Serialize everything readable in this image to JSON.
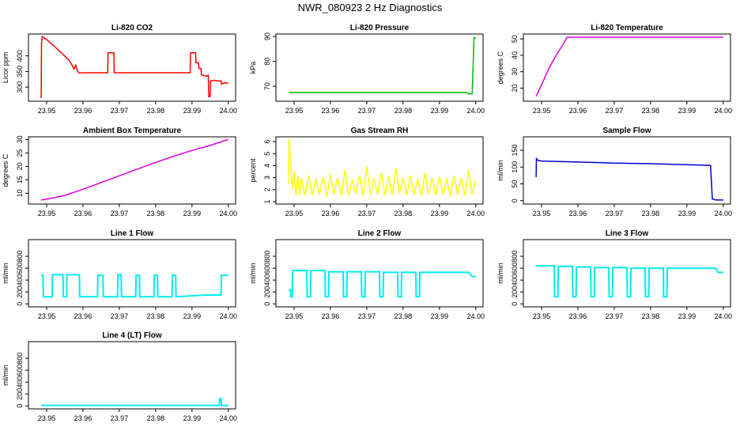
{
  "page_title": "NWR_080923 2 Hz Diagnostics",
  "chart_data": [
    {
      "id": "co2",
      "type": "line",
      "title": "Li-820 CO2",
      "ylabel": "Licor ppm",
      "color": "#ff0000",
      "xlim": [
        23.945,
        24.002
      ],
      "ylim": [
        255,
        470
      ],
      "xticks": [
        "23.95",
        "23.96",
        "23.97",
        "23.98",
        "23.99",
        "24.00"
      ],
      "yticks": [
        "300",
        "350",
        "400"
      ],
      "x": [
        23.9485,
        23.9486,
        23.9488,
        23.95,
        23.952,
        23.954,
        23.956,
        23.957,
        23.9575,
        23.958,
        23.9585,
        23.959,
        23.96,
        23.962,
        23.964,
        23.966,
        23.9668,
        23.9669,
        23.9685,
        23.9686,
        23.97,
        23.975,
        23.98,
        23.985,
        23.9895,
        23.9896,
        23.991,
        23.9911,
        23.9918,
        23.9919,
        23.9925,
        23.9926,
        23.993,
        23.994,
        23.9945,
        23.9946,
        23.995,
        23.9951,
        23.996,
        23.997,
        23.998,
        23.9981,
        23.999,
        24.0
      ],
      "y": [
        265,
        440,
        462,
        452,
        432,
        410,
        388,
        370,
        358,
        370,
        350,
        345,
        346,
        346,
        346,
        346,
        346,
        410,
        410,
        346,
        346,
        346,
        346,
        346,
        346,
        410,
        410,
        378,
        378,
        360,
        360,
        340,
        338,
        335,
        338,
        270,
        270,
        320,
        322,
        320,
        320,
        310,
        314,
        312
      ]
    },
    {
      "id": "pressure",
      "type": "line",
      "title": "Li-820 Pressure",
      "ylabel": "kPa",
      "color": "#00bb00",
      "xlim": [
        23.945,
        24.002
      ],
      "ylim": [
        64,
        91
      ],
      "xticks": [
        "23.95",
        "23.96",
        "23.97",
        "23.98",
        "23.99",
        "24.00"
      ],
      "yticks": [
        "70",
        "80",
        "90"
      ],
      "x": [
        23.9485,
        23.96,
        23.97,
        23.98,
        23.99,
        23.9975,
        23.998,
        23.999,
        23.9993,
        23.9995,
        24.0
      ],
      "y": [
        67.5,
        67.5,
        67.5,
        67.5,
        67.5,
        67.5,
        67.0,
        67.0,
        80.0,
        89.5,
        89.5
      ]
    },
    {
      "id": "temperature",
      "type": "line",
      "title": "Li-820 Temperature",
      "ylabel": "degrees C",
      "color": "#dd00dd",
      "xlim": [
        23.945,
        24.002
      ],
      "ylim": [
        12,
        53
      ],
      "xticks": [
        "23.95",
        "23.96",
        "23.97",
        "23.98",
        "23.99",
        "24.00"
      ],
      "yticks": [
        "20",
        "30",
        "40",
        "50"
      ],
      "x": [
        23.9485,
        23.95,
        23.952,
        23.954,
        23.956,
        23.957,
        23.96,
        23.97,
        23.98,
        23.99,
        24.0
      ],
      "y": [
        15,
        22,
        32,
        40,
        47,
        51,
        51,
        51,
        51,
        51,
        51
      ]
    },
    {
      "id": "ambient",
      "type": "line",
      "title": "Ambient Box Temperature",
      "ylabel": "degrees C",
      "color": "#dd00dd",
      "xlim": [
        23.945,
        24.002
      ],
      "ylim": [
        6,
        31
      ],
      "xticks": [
        "23.95",
        "23.96",
        "23.97",
        "23.98",
        "23.99",
        "24.00"
      ],
      "yticks": [
        "10",
        "15",
        "20",
        "25",
        "30"
      ],
      "x": [
        23.9485,
        23.95,
        23.955,
        23.96,
        23.965,
        23.97,
        23.975,
        23.98,
        23.985,
        23.99,
        23.995,
        24.0
      ],
      "y": [
        7.5,
        7.8,
        9.2,
        11.5,
        14.0,
        16.5,
        19.0,
        21.5,
        23.8,
        25.9,
        27.8,
        30.0
      ]
    },
    {
      "id": "rh",
      "type": "line",
      "title": "Gas Stream RH",
      "ylabel": "percent",
      "color": "#ffff00",
      "xlim": [
        23.945,
        24.002
      ],
      "ylim": [
        0.8,
        6.4
      ],
      "xticks": [
        "23.95",
        "23.96",
        "23.97",
        "23.98",
        "23.99",
        "24.00"
      ],
      "yticks": [
        "1",
        "2",
        "3",
        "4",
        "5",
        "6"
      ],
      "x": [
        23.9485,
        23.9486,
        23.949,
        23.9495,
        23.95,
        23.9505,
        23.951,
        23.9515,
        23.952,
        23.953,
        23.954,
        23.955,
        23.956,
        23.957,
        23.958,
        23.959,
        23.96,
        23.961,
        23.962,
        23.963,
        23.964,
        23.965,
        23.966,
        23.967,
        23.968,
        23.969,
        23.97,
        23.971,
        23.972,
        23.973,
        23.974,
        23.975,
        23.976,
        23.977,
        23.978,
        23.979,
        23.98,
        23.981,
        23.982,
        23.983,
        23.984,
        23.985,
        23.986,
        23.987,
        23.988,
        23.989,
        23.99,
        23.991,
        23.992,
        23.993,
        23.994,
        23.995,
        23.996,
        23.997,
        23.998,
        23.999,
        24.0
      ],
      "y": [
        2.5,
        6.2,
        4.5,
        2.0,
        3.5,
        1.5,
        3.2,
        1.6,
        3.0,
        1.5,
        3.2,
        1.5,
        2.9,
        1.6,
        3.1,
        1.4,
        3.3,
        1.6,
        3.0,
        1.5,
        3.6,
        1.5,
        2.8,
        1.7,
        3.2,
        1.5,
        3.9,
        1.6,
        2.9,
        1.6,
        3.4,
        1.5,
        3.1,
        1.6,
        3.8,
        1.7,
        3.0,
        1.5,
        3.2,
        1.6,
        2.9,
        1.5,
        3.4,
        1.6,
        3.0,
        1.5,
        3.1,
        1.6,
        2.9,
        1.4,
        3.2,
        1.6,
        3.0,
        1.5,
        3.6,
        1.6,
        2.8
      ]
    },
    {
      "id": "sample",
      "type": "line",
      "title": "Sample Flow",
      "ylabel": "ml/min",
      "color": "#0000cc",
      "xlim": [
        23.945,
        24.002
      ],
      "ylim": [
        -10,
        190
      ],
      "xticks": [
        "23.95",
        "23.96",
        "23.97",
        "23.98",
        "23.99",
        "24.00"
      ],
      "yticks": [
        "0",
        "50",
        "100",
        "150"
      ],
      "x": [
        23.9485,
        23.9486,
        23.949,
        23.95,
        23.96,
        23.97,
        23.98,
        23.99,
        23.996,
        23.9965,
        23.997,
        23.998,
        24.0
      ],
      "y": [
        70,
        125,
        120,
        118,
        115,
        112,
        110,
        107,
        105,
        105,
        5,
        2,
        2
      ]
    },
    {
      "id": "line1",
      "type": "line",
      "title": "Line 1 Flow",
      "ylabel": "ml/min",
      "color": "#00eeee",
      "xlim": [
        23.945,
        24.002
      ],
      "ylim": [
        -50,
        1080
      ],
      "xticks": [
        "23.95",
        "23.96",
        "23.97",
        "23.98",
        "23.99",
        "24.00"
      ],
      "yticks": [
        "0",
        "200",
        "400",
        "600",
        "800"
      ],
      "x": [
        23.9485,
        23.949,
        23.9491,
        23.9515,
        23.9516,
        23.9545,
        23.9546,
        23.9555,
        23.9556,
        23.959,
        23.9591,
        23.964,
        23.9641,
        23.9655,
        23.9656,
        23.9695,
        23.9696,
        23.9705,
        23.9706,
        23.9745,
        23.9746,
        23.9755,
        23.9756,
        23.9795,
        23.9796,
        23.9805,
        23.9806,
        23.9845,
        23.9846,
        23.9855,
        23.9856,
        23.994,
        23.9941,
        23.998,
        23.9981,
        24.0
      ],
      "y": [
        480,
        480,
        120,
        120,
        490,
        490,
        120,
        120,
        490,
        490,
        120,
        120,
        480,
        480,
        120,
        120,
        490,
        490,
        120,
        120,
        480,
        480,
        120,
        120,
        480,
        480,
        120,
        120,
        480,
        480,
        120,
        150,
        150,
        150,
        480,
        480
      ]
    },
    {
      "id": "line2",
      "type": "line",
      "title": "Line 2 Flow",
      "ylabel": "ml/min",
      "color": "#00eeee",
      "xlim": [
        23.945,
        24.002
      ],
      "ylim": [
        -50,
        1080
      ],
      "xticks": [
        "23.95",
        "23.96",
        "23.97",
        "23.98",
        "23.99",
        "24.00"
      ],
      "yticks": [
        "0",
        "200",
        "400",
        "600",
        "800"
      ],
      "x": [
        23.9485,
        23.949,
        23.9491,
        23.9495,
        23.9496,
        23.9535,
        23.9536,
        23.9545,
        23.9546,
        23.9585,
        23.9586,
        23.9595,
        23.9596,
        23.9635,
        23.9636,
        23.9645,
        23.9646,
        23.9685,
        23.9686,
        23.9695,
        23.9696,
        23.9735,
        23.9736,
        23.9745,
        23.9746,
        23.9785,
        23.9786,
        23.9795,
        23.9796,
        23.9835,
        23.9836,
        23.9845,
        23.9846,
        23.998,
        23.999,
        24.0
      ],
      "y": [
        230,
        230,
        120,
        120,
        560,
        560,
        120,
        120,
        560,
        560,
        120,
        120,
        540,
        540,
        120,
        120,
        540,
        540,
        120,
        120,
        540,
        540,
        120,
        120,
        530,
        530,
        120,
        120,
        530,
        530,
        120,
        120,
        530,
        530,
        460,
        460
      ]
    },
    {
      "id": "line3",
      "type": "line",
      "title": "Line 3 Flow",
      "ylabel": "ml/min",
      "color": "#00eeee",
      "xlim": [
        23.945,
        24.002
      ],
      "ylim": [
        -50,
        1080
      ],
      "xticks": [
        "23.95",
        "23.96",
        "23.97",
        "23.98",
        "23.99",
        "24.00"
      ],
      "yticks": [
        "0",
        "200",
        "400",
        "600",
        "800"
      ],
      "x": [
        23.9485,
        23.9535,
        23.9536,
        23.9545,
        23.9546,
        23.9585,
        23.9586,
        23.9595,
        23.9596,
        23.9635,
        23.9636,
        23.9645,
        23.9646,
        23.9685,
        23.9686,
        23.9695,
        23.9696,
        23.9735,
        23.9736,
        23.9745,
        23.9746,
        23.9785,
        23.9786,
        23.9795,
        23.9796,
        23.9835,
        23.9836,
        23.9845,
        23.9846,
        23.998,
        23.9985,
        24.0
      ],
      "y": [
        640,
        640,
        120,
        120,
        630,
        630,
        120,
        120,
        620,
        620,
        120,
        120,
        610,
        610,
        120,
        120,
        610,
        610,
        120,
        120,
        600,
        600,
        120,
        120,
        600,
        600,
        120,
        120,
        600,
        600,
        530,
        530
      ]
    },
    {
      "id": "line4",
      "type": "line",
      "title": "Line 4 (LT) Flow",
      "ylabel": "ml/min",
      "color": "#00eeee",
      "xlim": [
        23.945,
        24.002
      ],
      "ylim": [
        -50,
        1080
      ],
      "xticks": [
        "23.95",
        "23.96",
        "23.97",
        "23.98",
        "23.99",
        "24.00"
      ],
      "yticks": [
        "0",
        "200",
        "400",
        "600",
        "800"
      ],
      "x": [
        23.9485,
        23.96,
        23.97,
        23.98,
        23.99,
        23.9975,
        23.9976,
        23.998,
        23.9981,
        24.0
      ],
      "y": [
        8,
        8,
        8,
        8,
        8,
        8,
        120,
        120,
        8,
        8
      ]
    }
  ]
}
